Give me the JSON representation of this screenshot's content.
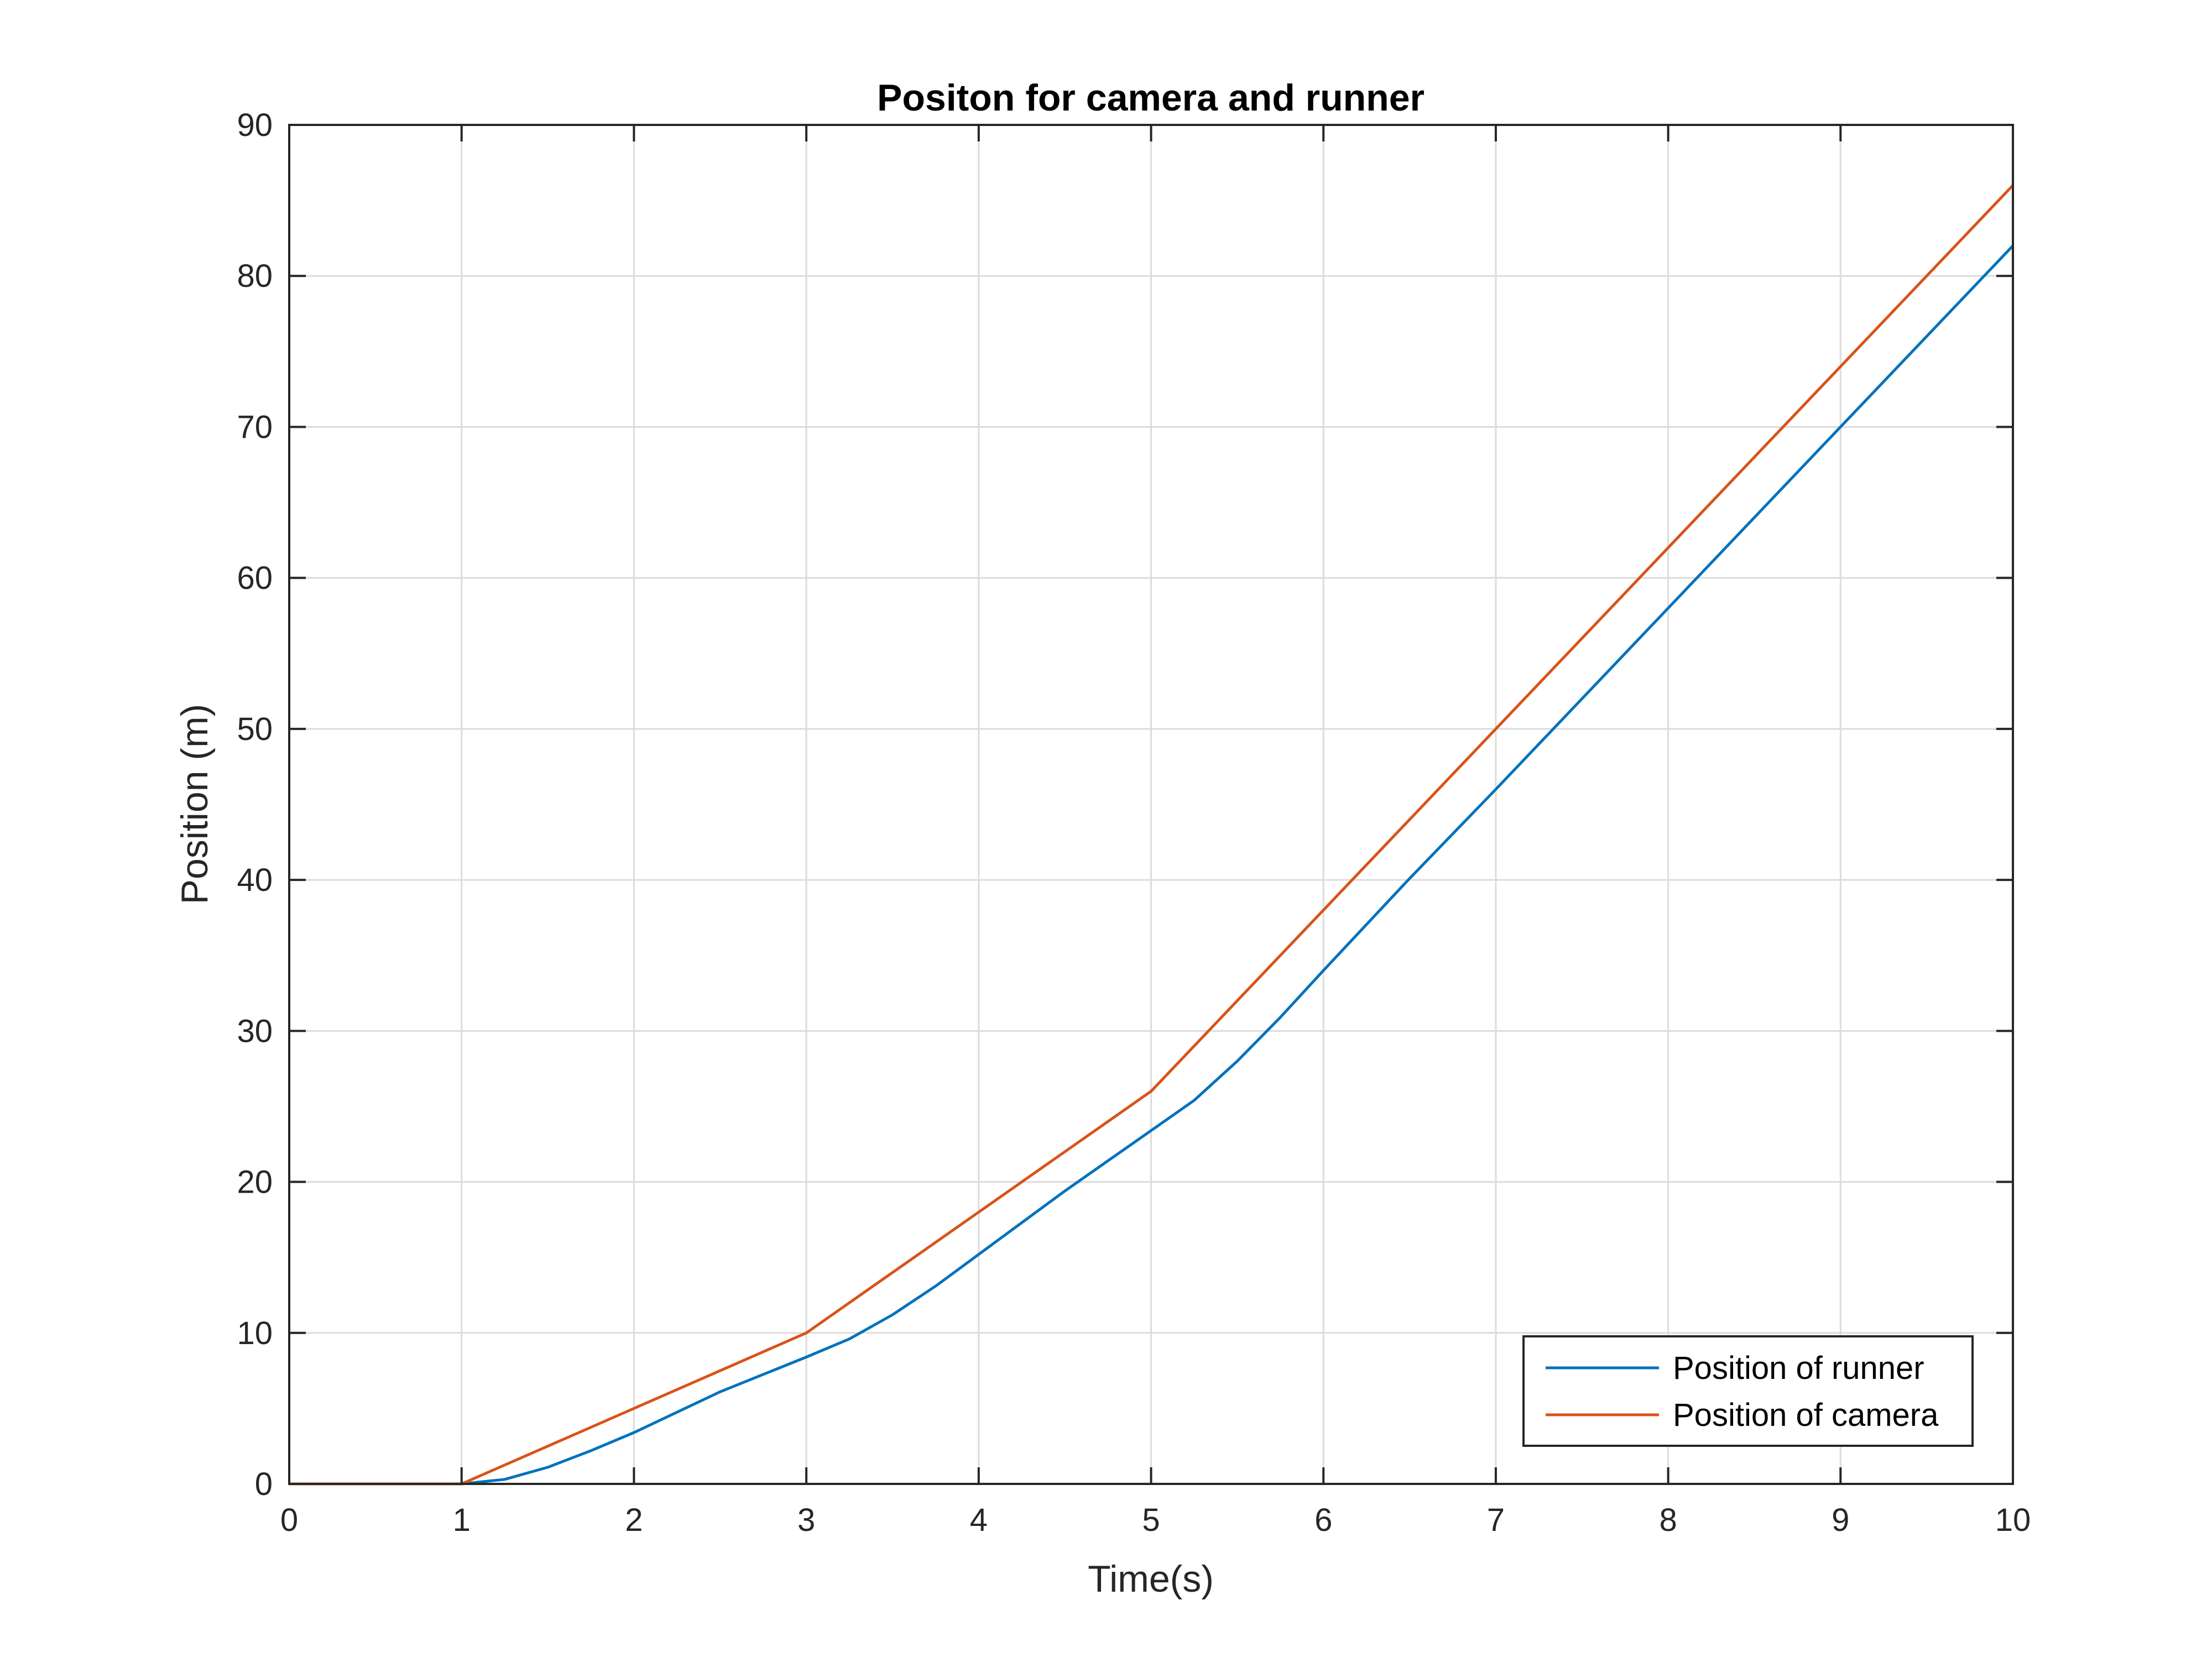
{
  "chart_data": {
    "type": "line",
    "title": "Positon for camera and runner",
    "xlabel": "Time(s)",
    "ylabel": "Position (m)",
    "xlim": [
      0,
      10
    ],
    "ylim": [
      0,
      90
    ],
    "x_ticks": [
      0,
      1,
      2,
      3,
      4,
      5,
      6,
      7,
      8,
      9,
      10
    ],
    "y_ticks": [
      0,
      10,
      20,
      30,
      40,
      50,
      60,
      70,
      80,
      90
    ],
    "x_tick_labels": [
      "0",
      "1",
      "2",
      "3",
      "4",
      "5",
      "6",
      "7",
      "8",
      "9",
      "10"
    ],
    "y_tick_labels": [
      "0",
      "10",
      "20",
      "30",
      "40",
      "50",
      "60",
      "70",
      "80",
      "90"
    ],
    "grid": true,
    "legend_position": "bottom-right",
    "series": [
      {
        "name": "Position of runner",
        "color": "#0072BD",
        "x": [
          0,
          1,
          1.25,
          1.5,
          1.75,
          2,
          2.5,
          3,
          3.25,
          3.5,
          3.75,
          4,
          4.5,
          5,
          5.25,
          5.5,
          5.75,
          6,
          6.5,
          7,
          8,
          9,
          10
        ],
        "y": [
          0,
          0,
          0.3,
          1.1,
          2.2,
          3.4,
          6.1,
          8.4,
          9.6,
          11.2,
          13.1,
          15.2,
          19.4,
          23.4,
          25.4,
          28.0,
          30.9,
          34.0,
          40.1,
          46.0,
          58.0,
          70.0,
          82.0
        ]
      },
      {
        "name": "Position of camera",
        "color": "#D95319",
        "x": [
          0,
          1,
          3,
          5,
          10
        ],
        "y": [
          0,
          0,
          10,
          26,
          86
        ]
      }
    ]
  }
}
